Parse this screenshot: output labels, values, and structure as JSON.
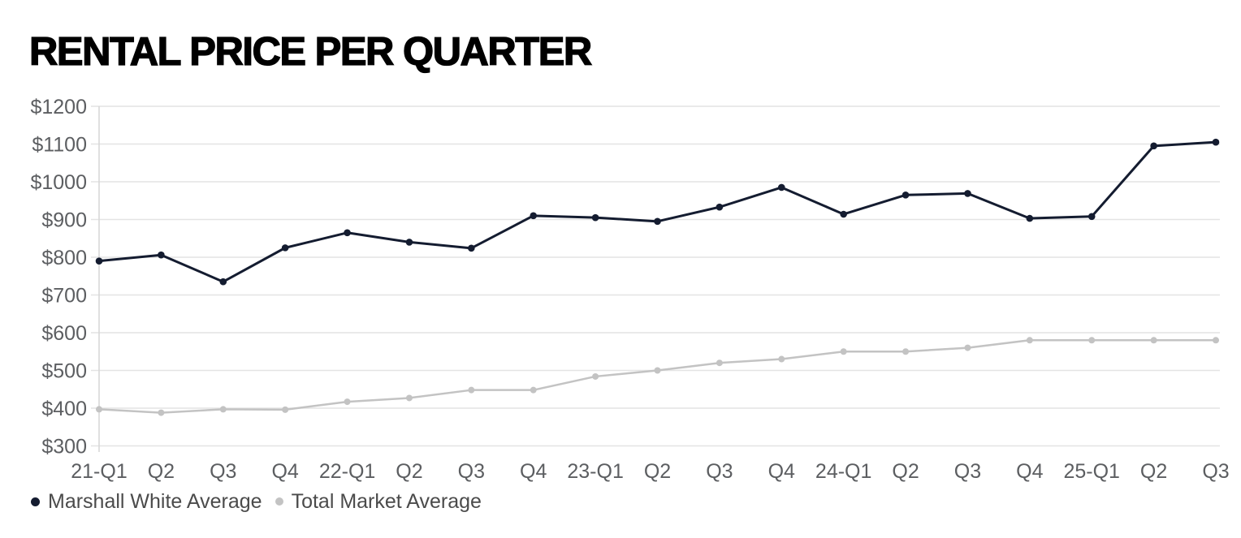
{
  "header": {
    "title": "RENTAL PRICE PER QUARTER"
  },
  "chart_data": {
    "type": "line",
    "title": "RENTAL PRICE PER QUARTER",
    "categories": [
      "21-Q1",
      "Q2",
      "Q3",
      "Q4",
      "22-Q1",
      "Q2",
      "Q3",
      "Q4",
      "23-Q1",
      "Q2",
      "Q3",
      "Q4",
      "24-Q1",
      "Q2",
      "Q3",
      "Q4",
      "25-Q1",
      "Q2",
      "Q3"
    ],
    "series": [
      {
        "name": "Marshall White Average",
        "color": "#141c30",
        "values": [
          790,
          806,
          735,
          825,
          865,
          840,
          824,
          910,
          905,
          895,
          933,
          985,
          914,
          965,
          969,
          903,
          908,
          1095,
          1105
        ]
      },
      {
        "name": "Total Market Average",
        "color": "#c3c3c3",
        "values": [
          397,
          388,
          397,
          396,
          417,
          427,
          448,
          448,
          484,
          500,
          520,
          530,
          550,
          550,
          560,
          580,
          580,
          580,
          580
        ]
      }
    ],
    "xlabel": "",
    "ylabel": "",
    "ylim": [
      300,
      1200
    ],
    "y_ticks": [
      {
        "value": 1200,
        "label": "$1200"
      },
      {
        "value": 1100,
        "label": "$1100"
      },
      {
        "value": 1000,
        "label": "$1000"
      },
      {
        "value": 900,
        "label": "$900"
      },
      {
        "value": 800,
        "label": "$800"
      },
      {
        "value": 700,
        "label": "$700"
      },
      {
        "value": 600,
        "label": "$600"
      },
      {
        "value": 500,
        "label": "$500"
      },
      {
        "value": 400,
        "label": "$400"
      },
      {
        "value": 300,
        "label": "$300"
      }
    ],
    "grid": "horizontal",
    "legend_position": "bottom-left"
  },
  "colors": {
    "grid": "#e4e4e4",
    "axis": "#d6d6d6",
    "tick_text": "#5c5e61",
    "legend_text": "#4b4b4b",
    "title": "#000000",
    "background": "#ffffff"
  }
}
